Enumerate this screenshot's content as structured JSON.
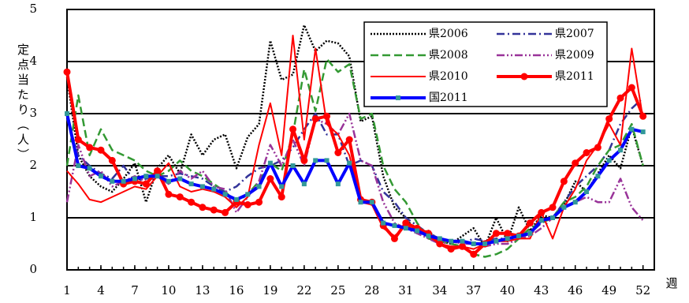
{
  "chart_data": {
    "type": "line",
    "y_label": "定点当たり（人）",
    "x_label": "週",
    "x": [
      1,
      2,
      3,
      4,
      5,
      6,
      7,
      8,
      9,
      10,
      11,
      12,
      13,
      14,
      15,
      16,
      17,
      18,
      19,
      20,
      21,
      22,
      23,
      24,
      25,
      26,
      27,
      28,
      29,
      30,
      31,
      32,
      33,
      34,
      35,
      36,
      37,
      38,
      39,
      40,
      41,
      42,
      43,
      44,
      45,
      46,
      47,
      48,
      49,
      50,
      51,
      52
    ],
    "xlim": [
      1,
      53
    ],
    "xticks": [
      1,
      4,
      7,
      10,
      13,
      16,
      19,
      22,
      25,
      28,
      31,
      34,
      37,
      40,
      43,
      46,
      49,
      52
    ],
    "ylim": [
      0,
      5
    ],
    "yticks": [
      0,
      1,
      2,
      3,
      4,
      5
    ],
    "grid": true,
    "series": [
      {
        "name": "県2006",
        "color": "#000000",
        "line_style": "dotted",
        "width": 2.5,
        "values": [
          3.7,
          2.2,
          1.8,
          1.6,
          1.5,
          1.75,
          2.05,
          1.3,
          1.95,
          2.2,
          1.85,
          2.6,
          2.2,
          2.5,
          2.6,
          1.95,
          2.55,
          2.8,
          4.4,
          3.65,
          3.75,
          4.7,
          4.2,
          4.4,
          4.35,
          4.1,
          2.85,
          2.95,
          1.8,
          1.2,
          1.0,
          0.7,
          0.75,
          0.55,
          0.5,
          0.65,
          0.8,
          0.45,
          1.0,
          0.55,
          1.2,
          0.75,
          1.05,
          1.0,
          1.25,
          1.7,
          1.5,
          1.85,
          2.2,
          1.95,
          2.75,
          2.0
        ]
      },
      {
        "name": "県2007",
        "color": "#333399",
        "line_style": "dash-dot",
        "width": 2.5,
        "values": [
          2.9,
          2.2,
          2.0,
          1.85,
          1.75,
          2.0,
          1.7,
          1.75,
          1.8,
          1.8,
          1.85,
          1.8,
          1.75,
          1.6,
          1.5,
          1.6,
          1.8,
          1.95,
          2.0,
          2.1,
          2.35,
          2.7,
          3.0,
          2.6,
          2.6,
          2.0,
          2.1,
          2.0,
          1.5,
          1.3,
          1.0,
          0.85,
          0.7,
          0.6,
          0.55,
          0.5,
          0.6,
          0.55,
          0.6,
          0.6,
          0.6,
          0.7,
          0.9,
          1.0,
          1.3,
          1.6,
          1.8,
          2.0,
          2.3,
          2.8,
          3.1,
          3.3
        ]
      },
      {
        "name": "県2008",
        "color": "#339933",
        "line_style": "dashed",
        "width": 2.5,
        "values": [
          2.0,
          3.35,
          2.2,
          2.7,
          2.3,
          2.2,
          2.1,
          1.9,
          1.8,
          1.9,
          2.1,
          1.9,
          1.8,
          1.65,
          1.5,
          1.3,
          1.45,
          1.7,
          2.05,
          1.9,
          2.6,
          3.85,
          3.05,
          4.05,
          3.8,
          3.95,
          2.9,
          3.0,
          2.0,
          1.55,
          1.3,
          0.9,
          0.6,
          0.55,
          0.5,
          0.45,
          0.3,
          0.25,
          0.3,
          0.4,
          0.6,
          0.8,
          0.9,
          1.0,
          1.3,
          1.4,
          1.6,
          2.0,
          2.3,
          2.4,
          2.8,
          2.0
        ]
      },
      {
        "name": "県2009",
        "color": "#993399",
        "line_style": "dash-dot-dot",
        "width": 2.5,
        "values": [
          1.3,
          2.4,
          1.8,
          1.9,
          1.6,
          1.7,
          1.8,
          1.7,
          1.8,
          1.65,
          1.9,
          1.75,
          1.9,
          1.6,
          1.55,
          1.1,
          1.4,
          1.7,
          2.4,
          2.0,
          2.5,
          2.0,
          2.9,
          2.8,
          2.6,
          3.0,
          2.1,
          2.0,
          1.3,
          0.9,
          0.8,
          0.7,
          0.6,
          0.5,
          0.55,
          0.5,
          0.5,
          0.45,
          0.5,
          0.5,
          0.6,
          0.65,
          0.8,
          1.0,
          1.2,
          1.3,
          1.4,
          1.3,
          1.3,
          1.75,
          1.2,
          0.95
        ]
      },
      {
        "name": "県2010",
        "color": "#ff0000",
        "line_style": "solid",
        "width": 2,
        "values": [
          1.9,
          1.65,
          1.35,
          1.3,
          1.4,
          1.5,
          1.6,
          1.55,
          1.8,
          2.05,
          1.6,
          1.5,
          1.55,
          1.5,
          1.4,
          1.2,
          1.4,
          2.4,
          3.2,
          2.2,
          4.5,
          2.5,
          4.25,
          2.8,
          2.6,
          2.2,
          1.3,
          1.25,
          0.8,
          0.65,
          0.85,
          0.75,
          0.65,
          0.5,
          0.45,
          0.45,
          0.4,
          0.5,
          0.55,
          0.55,
          0.6,
          0.6,
          1.1,
          0.6,
          1.2,
          1.55,
          2.1,
          2.4,
          2.8,
          2.4,
          4.25,
          2.9
        ]
      },
      {
        "name": "県2011",
        "color": "#ff0000",
        "line_style": "solid",
        "width": 4,
        "marker": "circle",
        "marker_color": "#ff0000",
        "values": [
          3.8,
          2.5,
          2.35,
          2.3,
          2.1,
          1.65,
          1.7,
          1.65,
          1.9,
          1.45,
          1.4,
          1.3,
          1.2,
          1.15,
          1.1,
          1.3,
          1.25,
          1.3,
          1.75,
          1.4,
          2.7,
          2.1,
          2.9,
          2.95,
          2.25,
          2.5,
          1.35,
          1.3,
          0.85,
          0.6,
          0.9,
          0.8,
          0.7,
          0.5,
          0.4,
          0.45,
          0.3,
          0.5,
          0.7,
          0.7,
          0.65,
          0.9,
          1.1,
          1.2,
          1.7,
          2.05,
          2.25,
          2.35,
          2.9,
          3.3,
          3.5,
          2.95
        ]
      },
      {
        "name": "国2011",
        "color": "#0000ff",
        "line_style": "solid",
        "width": 4,
        "marker": "square",
        "marker_color": "#339999",
        "values": [
          3.0,
          2.0,
          1.95,
          1.8,
          1.7,
          1.7,
          1.75,
          1.8,
          1.8,
          1.7,
          1.75,
          1.65,
          1.6,
          1.55,
          1.45,
          1.35,
          1.45,
          1.6,
          2.05,
          1.6,
          2.0,
          1.65,
          2.1,
          2.1,
          1.65,
          2.05,
          1.3,
          1.3,
          0.9,
          0.85,
          0.8,
          0.75,
          0.65,
          0.6,
          0.55,
          0.55,
          0.5,
          0.5,
          0.55,
          0.6,
          0.65,
          0.7,
          0.95,
          1.0,
          1.2,
          1.3,
          1.5,
          1.8,
          2.1,
          2.3,
          2.7,
          2.65
        ]
      }
    ]
  }
}
